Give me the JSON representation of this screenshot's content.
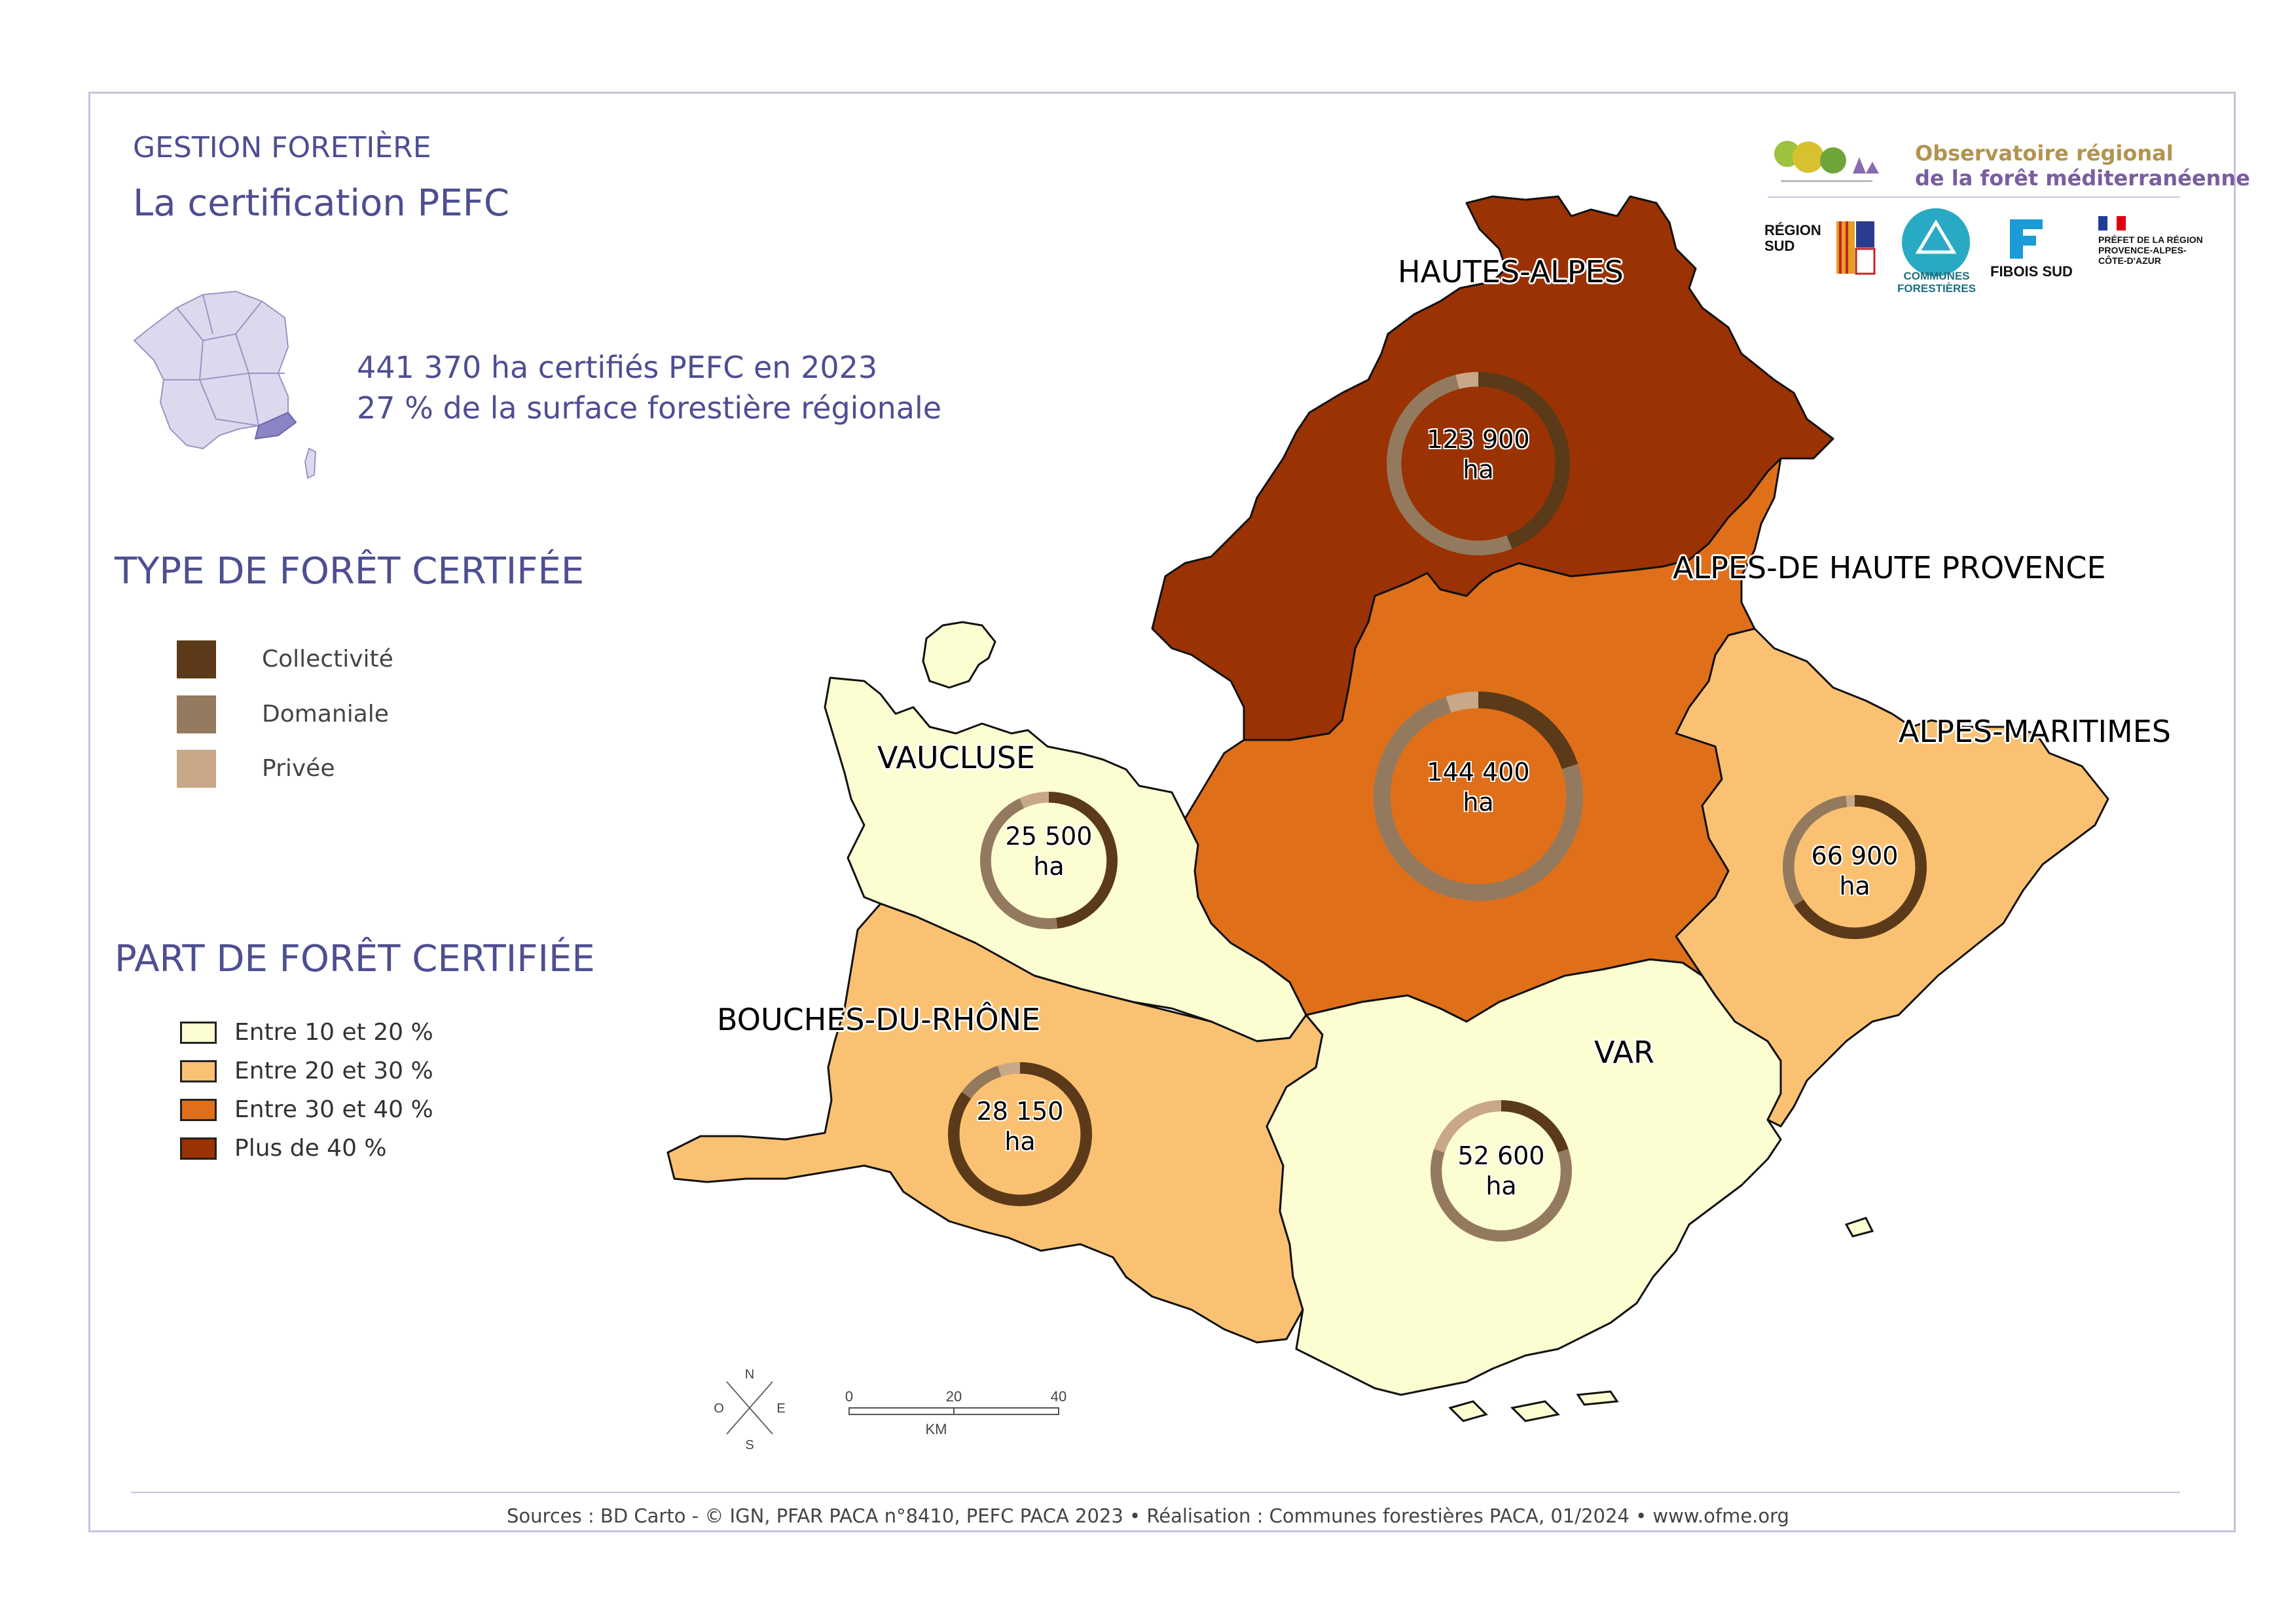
{
  "header": {
    "section": "GESTION FORETIÈRE",
    "title": "La certification PEFC"
  },
  "stats": {
    "line1": "441 370 ha certifiés PEFC en 2023",
    "line2": "27 % de la surface forestière régionale"
  },
  "legend_type": {
    "heading": "TYPE DE FORÊT CERTIFÉE",
    "items": [
      {
        "label": "Collectivité",
        "color": "#5a3a18"
      },
      {
        "label": "Domaniale",
        "color": "#937a5e"
      },
      {
        "label": "Privée",
        "color": "#c8a887"
      }
    ]
  },
  "legend_part": {
    "heading": "PART DE FORÊT CERTIFIÉE",
    "items": [
      {
        "label": "Entre 10 et 20 %",
        "color": "#fdfdd2"
      },
      {
        "label": "Entre 20 et 30 %",
        "color": "#fbc172"
      },
      {
        "label": "Entre 30 et 40 %",
        "color": "#e06f1a"
      },
      {
        "label": "Plus de 40 %",
        "color": "#9a3204"
      }
    ]
  },
  "departments": [
    {
      "name": "HAUTES-ALPES",
      "category": "Plus de 40 %",
      "certified_ha": "123 900",
      "unit": "ha",
      "split": {
        "collectivite": 0.44,
        "domaniale": 0.52,
        "privee": 0.04
      }
    },
    {
      "name": "ALPES-DE HAUTE PROVENCE",
      "category": "Entre 30 et 40 %",
      "certified_ha": "144 400",
      "unit": "ha",
      "split": {
        "collectivite": 0.2,
        "domaniale": 0.75,
        "privee": 0.05
      }
    },
    {
      "name": "ALPES-MARITIMES",
      "category": "Entre 20 et 30 %",
      "certified_ha": "66 900",
      "unit": "ha",
      "split": {
        "collectivite": 0.66,
        "domaniale": 0.32,
        "privee": 0.02
      }
    },
    {
      "name": "VAUCLUSE",
      "category": "Entre 10 et 20 %",
      "certified_ha": "25 500",
      "unit": "ha",
      "split": {
        "collectivite": 0.48,
        "domaniale": 0.45,
        "privee": 0.07
      }
    },
    {
      "name": "BOUCHES-DU-RHÔNE",
      "category": "Entre 20 et 30 %",
      "certified_ha": "28 150",
      "unit": "ha",
      "split": {
        "collectivite": 0.85,
        "domaniale": 0.1,
        "privee": 0.05
      }
    },
    {
      "name": "VAR",
      "category": "Entre 10 et 20 %",
      "certified_ha": "52 600",
      "unit": "ha",
      "split": {
        "collectivite": 0.2,
        "domaniale": 0.6,
        "privee": 0.2
      }
    }
  ],
  "compass": {
    "n": "N",
    "s": "S",
    "e": "E",
    "o": "O"
  },
  "scale": {
    "ticks": [
      "0",
      "20",
      "40"
    ],
    "unit": "KM"
  },
  "logos": {
    "observatoire_line1": "Observatoire régional",
    "observatoire_line2": "de la forêt méditerranéenne",
    "region": "RÉGION SUD",
    "communes": "COMMUNES FORESTIÈRES",
    "fibois": "FIBOIS SUD",
    "prefet": "PRÉFET DE LA RÉGION PROVENCE-ALPES-CÔTE-D'AZUR",
    "icons": [
      "observatoire-logo-icon",
      "region-sud-logo-icon",
      "communes-forestieres-logo-icon",
      "fibois-logo-icon",
      "prefet-logo-icon"
    ]
  },
  "footer": {
    "sources": "Sources : BD Carto - © IGN, PFAR PACA n°8410, PEFC PACA 2023 • Réalisation : Communes forestières PACA, 01/2024 • www.ofme.org"
  }
}
